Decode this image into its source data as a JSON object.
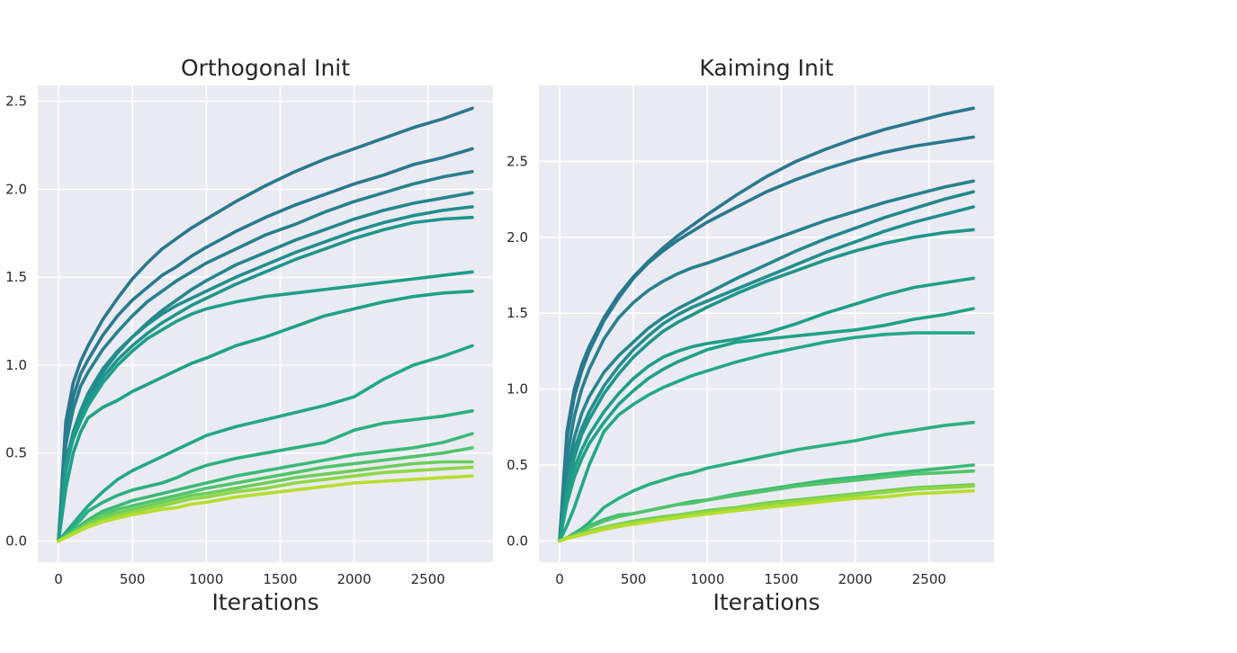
{
  "chart_data": [
    {
      "type": "line",
      "title": "Orthogonal Init",
      "xlabel": "Iterations",
      "ylabel": "",
      "xlim": [
        -140,
        2940
      ],
      "ylim": [
        -0.12,
        2.59
      ],
      "xticks": [
        0,
        500,
        1000,
        1500,
        2000,
        2500
      ],
      "xtick_labels": [
        "0",
        "500",
        "1000",
        "1500",
        "2000",
        "2500"
      ],
      "yticks": [
        0.0,
        0.5,
        1.0,
        1.5,
        2.0,
        2.5
      ],
      "ytick_labels": [
        "0.0",
        "0.5",
        "1.0",
        "1.5",
        "2.0",
        "2.5"
      ],
      "grid": true,
      "x": [
        0,
        50,
        100,
        150,
        200,
        300,
        400,
        500,
        600,
        700,
        800,
        900,
        1000,
        1200,
        1400,
        1600,
        1800,
        2000,
        2200,
        2400,
        2600,
        2800
      ],
      "series": [
        {
          "color": "#2a788e",
          "values": [
            0,
            0.68,
            0.9,
            1.02,
            1.11,
            1.26,
            1.38,
            1.49,
            1.58,
            1.66,
            1.72,
            1.78,
            1.83,
            1.93,
            2.02,
            2.1,
            2.17,
            2.23,
            2.29,
            2.35,
            2.4,
            2.46
          ]
        },
        {
          "color": "#29798e",
          "values": [
            0,
            0.6,
            0.82,
            0.95,
            1.03,
            1.17,
            1.28,
            1.37,
            1.44,
            1.51,
            1.56,
            1.62,
            1.67,
            1.76,
            1.84,
            1.91,
            1.97,
            2.03,
            2.08,
            2.14,
            2.18,
            2.23
          ]
        },
        {
          "color": "#27808e",
          "values": [
            0,
            0.55,
            0.75,
            0.88,
            0.96,
            1.09,
            1.19,
            1.28,
            1.36,
            1.42,
            1.48,
            1.53,
            1.58,
            1.66,
            1.74,
            1.8,
            1.87,
            1.93,
            1.98,
            2.03,
            2.07,
            2.1
          ]
        },
        {
          "color": "#24868e",
          "values": [
            0,
            0.4,
            0.6,
            0.73,
            0.82,
            0.96,
            1.07,
            1.16,
            1.24,
            1.31,
            1.37,
            1.43,
            1.48,
            1.57,
            1.64,
            1.71,
            1.77,
            1.83,
            1.88,
            1.92,
            1.95,
            1.98
          ]
        },
        {
          "color": "#218e8d",
          "values": [
            0,
            0.45,
            0.62,
            0.74,
            0.84,
            0.98,
            1.08,
            1.16,
            1.23,
            1.29,
            1.34,
            1.38,
            1.42,
            1.5,
            1.57,
            1.64,
            1.7,
            1.76,
            1.81,
            1.85,
            1.88,
            1.9
          ]
        },
        {
          "color": "#1f958b",
          "values": [
            0,
            0.42,
            0.6,
            0.7,
            0.8,
            0.93,
            1.03,
            1.11,
            1.18,
            1.24,
            1.29,
            1.34,
            1.38,
            1.46,
            1.53,
            1.6,
            1.66,
            1.72,
            1.77,
            1.81,
            1.83,
            1.84
          ]
        },
        {
          "color": "#1f9e89",
          "values": [
            0,
            0.42,
            0.58,
            0.68,
            0.77,
            0.9,
            1.0,
            1.08,
            1.15,
            1.2,
            1.25,
            1.29,
            1.32,
            1.36,
            1.39,
            1.41,
            1.43,
            1.45,
            1.47,
            1.49,
            1.51,
            1.53
          ]
        },
        {
          "color": "#1fa187",
          "values": [
            0,
            0.3,
            0.5,
            0.62,
            0.7,
            0.76,
            0.8,
            0.85,
            0.89,
            0.93,
            0.97,
            1.01,
            1.04,
            1.11,
            1.16,
            1.22,
            1.28,
            1.32,
            1.36,
            1.39,
            1.41,
            1.42
          ]
        },
        {
          "color": "#22a884",
          "values": [
            0,
            0.05,
            0.1,
            0.15,
            0.2,
            0.28,
            0.35,
            0.4,
            0.44,
            0.48,
            0.52,
            0.56,
            0.6,
            0.65,
            0.69,
            0.73,
            0.77,
            0.82,
            0.92,
            1.0,
            1.05,
            1.11
          ]
        },
        {
          "color": "#2ab07f",
          "values": [
            0,
            0.04,
            0.08,
            0.12,
            0.17,
            0.22,
            0.26,
            0.29,
            0.31,
            0.33,
            0.36,
            0.4,
            0.43,
            0.47,
            0.5,
            0.53,
            0.56,
            0.63,
            0.67,
            0.69,
            0.71,
            0.74
          ]
        },
        {
          "color": "#3aba76",
          "values": [
            0,
            0.03,
            0.06,
            0.09,
            0.12,
            0.17,
            0.2,
            0.23,
            0.25,
            0.27,
            0.29,
            0.31,
            0.33,
            0.37,
            0.4,
            0.43,
            0.46,
            0.49,
            0.51,
            0.53,
            0.56,
            0.61
          ]
        },
        {
          "color": "#50c46a",
          "values": [
            0,
            0.03,
            0.055,
            0.08,
            0.11,
            0.15,
            0.18,
            0.2,
            0.22,
            0.24,
            0.26,
            0.28,
            0.3,
            0.33,
            0.36,
            0.39,
            0.42,
            0.44,
            0.46,
            0.48,
            0.5,
            0.53
          ]
        },
        {
          "color": "#6ccd5a",
          "values": [
            0,
            0.025,
            0.05,
            0.075,
            0.1,
            0.14,
            0.16,
            0.18,
            0.2,
            0.22,
            0.24,
            0.26,
            0.27,
            0.3,
            0.33,
            0.36,
            0.38,
            0.4,
            0.42,
            0.44,
            0.45,
            0.45
          ]
        },
        {
          "color": "#8fd744",
          "values": [
            0,
            0.02,
            0.045,
            0.065,
            0.09,
            0.12,
            0.145,
            0.165,
            0.185,
            0.2,
            0.22,
            0.24,
            0.25,
            0.28,
            0.3,
            0.33,
            0.35,
            0.37,
            0.39,
            0.4,
            0.41,
            0.42
          ]
        },
        {
          "color": "#b5de2b",
          "values": [
            0,
            0.02,
            0.04,
            0.06,
            0.08,
            0.11,
            0.13,
            0.15,
            0.165,
            0.18,
            0.19,
            0.21,
            0.22,
            0.25,
            0.27,
            0.29,
            0.31,
            0.33,
            0.34,
            0.35,
            0.36,
            0.37
          ]
        }
      ]
    },
    {
      "type": "line",
      "title": "Kaiming Init",
      "xlabel": "Iterations",
      "ylabel": "",
      "xlim": [
        -140,
        2940
      ],
      "ylim": [
        -0.14,
        3.0
      ],
      "xticks": [
        0,
        500,
        1000,
        1500,
        2000,
        2500
      ],
      "xtick_labels": [
        "0",
        "500",
        "1000",
        "1500",
        "2000",
        "2500"
      ],
      "yticks": [
        0.0,
        0.5,
        1.0,
        1.5,
        2.0,
        2.5
      ],
      "ytick_labels": [
        "0.0",
        "0.5",
        "1.0",
        "1.5",
        "2.0",
        "2.5"
      ],
      "grid": true,
      "x": [
        0,
        50,
        100,
        150,
        200,
        300,
        400,
        500,
        600,
        700,
        800,
        900,
        1000,
        1200,
        1400,
        1600,
        1800,
        2000,
        2200,
        2400,
        2600,
        2800
      ],
      "series": [
        {
          "color": "#2a788e",
          "values": [
            0,
            0.72,
            1.0,
            1.16,
            1.28,
            1.47,
            1.62,
            1.74,
            1.84,
            1.93,
            2.01,
            2.08,
            2.15,
            2.28,
            2.4,
            2.5,
            2.58,
            2.65,
            2.71,
            2.76,
            2.81,
            2.85
          ]
        },
        {
          "color": "#29798e",
          "values": [
            0,
            0.68,
            0.95,
            1.12,
            1.25,
            1.45,
            1.6,
            1.73,
            1.83,
            1.91,
            1.98,
            2.04,
            2.1,
            2.2,
            2.3,
            2.38,
            2.45,
            2.51,
            2.56,
            2.6,
            2.63,
            2.66
          ]
        },
        {
          "color": "#27808e",
          "values": [
            0,
            0.55,
            0.82,
            1.0,
            1.13,
            1.33,
            1.47,
            1.57,
            1.65,
            1.71,
            1.76,
            1.8,
            1.83,
            1.9,
            1.97,
            2.04,
            2.11,
            2.17,
            2.23,
            2.28,
            2.33,
            2.37
          ]
        },
        {
          "color": "#24868e",
          "values": [
            0,
            0.45,
            0.68,
            0.84,
            0.95,
            1.11,
            1.22,
            1.31,
            1.4,
            1.47,
            1.53,
            1.58,
            1.63,
            1.73,
            1.82,
            1.91,
            1.99,
            2.06,
            2.13,
            2.19,
            2.25,
            2.3
          ]
        },
        {
          "color": "#218e8d",
          "values": [
            0,
            0.38,
            0.6,
            0.74,
            0.85,
            1.02,
            1.15,
            1.26,
            1.35,
            1.43,
            1.49,
            1.54,
            1.58,
            1.66,
            1.74,
            1.82,
            1.9,
            1.97,
            2.04,
            2.1,
            2.15,
            2.2
          ]
        },
        {
          "color": "#1f958b",
          "values": [
            0,
            0.35,
            0.55,
            0.7,
            0.8,
            0.97,
            1.1,
            1.21,
            1.3,
            1.38,
            1.44,
            1.49,
            1.54,
            1.63,
            1.71,
            1.78,
            1.85,
            1.91,
            1.96,
            2.0,
            2.03,
            2.05
          ]
        },
        {
          "color": "#1f9e89",
          "values": [
            0,
            0.28,
            0.48,
            0.6,
            0.7,
            0.85,
            0.97,
            1.07,
            1.15,
            1.21,
            1.25,
            1.28,
            1.3,
            1.33,
            1.37,
            1.43,
            1.5,
            1.56,
            1.62,
            1.67,
            1.7,
            1.73
          ]
        },
        {
          "color": "#1fa187",
          "values": [
            0,
            0.25,
            0.42,
            0.54,
            0.64,
            0.78,
            0.9,
            0.99,
            1.07,
            1.13,
            1.18,
            1.22,
            1.26,
            1.31,
            1.33,
            1.35,
            1.37,
            1.39,
            1.42,
            1.46,
            1.49,
            1.53
          ]
        },
        {
          "color": "#22a884",
          "values": [
            0,
            0.1,
            0.22,
            0.36,
            0.5,
            0.72,
            0.83,
            0.9,
            0.96,
            1.01,
            1.05,
            1.09,
            1.12,
            1.18,
            1.23,
            1.27,
            1.31,
            1.34,
            1.36,
            1.37,
            1.37,
            1.37
          ]
        },
        {
          "color": "#2ab07f",
          "values": [
            0,
            0.02,
            0.05,
            0.08,
            0.12,
            0.22,
            0.28,
            0.33,
            0.37,
            0.4,
            0.43,
            0.45,
            0.48,
            0.52,
            0.56,
            0.6,
            0.63,
            0.66,
            0.7,
            0.73,
            0.76,
            0.78
          ]
        },
        {
          "color": "#3aba76",
          "values": [
            0,
            0.02,
            0.04,
            0.06,
            0.1,
            0.14,
            0.17,
            0.18,
            0.2,
            0.22,
            0.24,
            0.26,
            0.27,
            0.31,
            0.34,
            0.37,
            0.4,
            0.42,
            0.44,
            0.46,
            0.48,
            0.5
          ]
        },
        {
          "color": "#50c46a",
          "values": [
            0,
            0.02,
            0.04,
            0.065,
            0.09,
            0.13,
            0.16,
            0.18,
            0.2,
            0.22,
            0.24,
            0.25,
            0.27,
            0.3,
            0.33,
            0.36,
            0.38,
            0.4,
            0.42,
            0.44,
            0.45,
            0.46
          ]
        },
        {
          "color": "#6ccd5a",
          "values": [
            0,
            0.02,
            0.035,
            0.05,
            0.065,
            0.09,
            0.11,
            0.13,
            0.145,
            0.16,
            0.17,
            0.185,
            0.2,
            0.22,
            0.25,
            0.27,
            0.29,
            0.31,
            0.33,
            0.35,
            0.36,
            0.37
          ]
        },
        {
          "color": "#8fd744",
          "values": [
            0,
            0.018,
            0.032,
            0.046,
            0.06,
            0.085,
            0.105,
            0.12,
            0.135,
            0.15,
            0.165,
            0.178,
            0.19,
            0.215,
            0.24,
            0.26,
            0.28,
            0.3,
            0.32,
            0.34,
            0.35,
            0.36
          ]
        },
        {
          "color": "#b5de2b",
          "values": [
            0,
            0.015,
            0.028,
            0.04,
            0.052,
            0.075,
            0.095,
            0.11,
            0.125,
            0.14,
            0.152,
            0.165,
            0.177,
            0.2,
            0.22,
            0.24,
            0.26,
            0.28,
            0.29,
            0.31,
            0.32,
            0.33
          ]
        }
      ]
    }
  ]
}
